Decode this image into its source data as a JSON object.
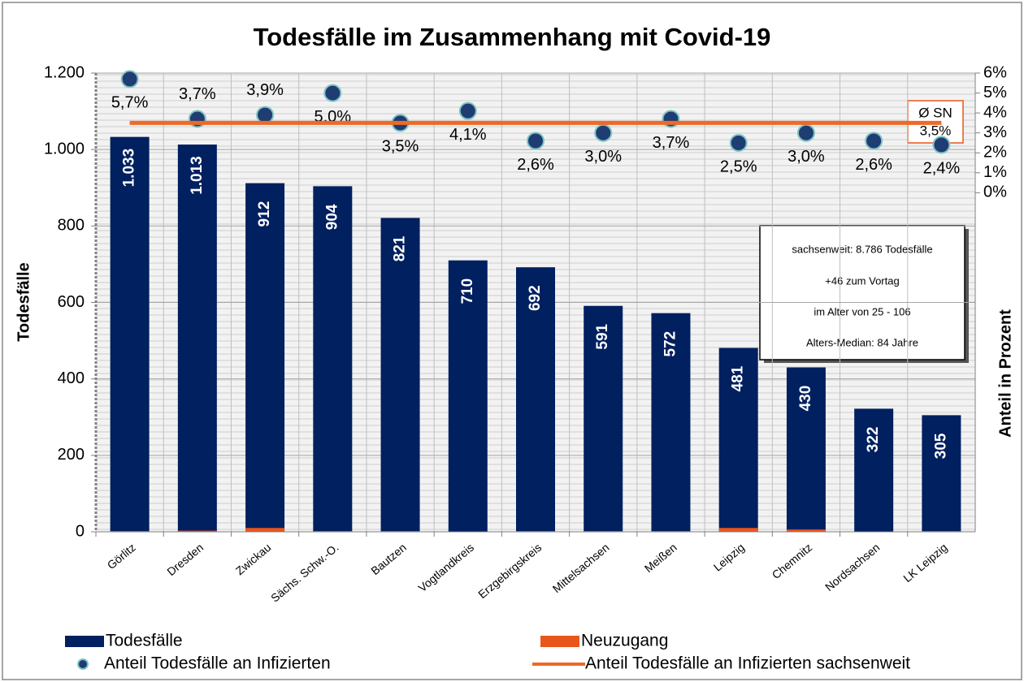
{
  "chart_data": {
    "type": "bar",
    "title": "Todesfälle im Zusammenhang mit Covid-19",
    "ylabel": "Todesfälle",
    "y2label": "Anteil in Prozent",
    "categories": [
      "Görlitz",
      "Dresden",
      "Zwickau",
      "Sächs. Schw.-O.",
      "Bautzen",
      "Vogtlandkreis",
      "Erzgebirgskreis",
      "Mittelsachsen",
      "Meißen",
      "Leipzig",
      "Chemnitz",
      "Nordsachsen",
      "LK Leipzig"
    ],
    "ylim": [
      0,
      1200
    ],
    "yticks": [
      0,
      200,
      400,
      600,
      800,
      {
        "value": 1000,
        "label": "1.000"
      },
      {
        "value": 1200,
        "label": "1.200"
      }
    ],
    "y2lim": [
      -17,
      6
    ],
    "y2ticks": [
      {
        "value": 0,
        "label": "0%"
      },
      {
        "value": 1,
        "label": "1%"
      },
      {
        "value": 2,
        "label": "2%"
      },
      {
        "value": 3,
        "label": "3%"
      },
      {
        "value": 4,
        "label": "4%"
      },
      {
        "value": 5,
        "label": "5%"
      },
      {
        "value": 6,
        "label": "6%"
      }
    ],
    "grid": true,
    "series": [
      {
        "name": "Todesfälle",
        "type": "bar",
        "color": "#002060",
        "values": [
          1033,
          1013,
          912,
          904,
          821,
          710,
          692,
          591,
          572,
          481,
          430,
          322,
          305
        ],
        "value_labels": [
          "1.033",
          "1.013",
          "912",
          "904",
          "821",
          "710",
          "692",
          "591",
          "572",
          "481",
          "430",
          "322",
          "305"
        ]
      },
      {
        "name": "Neuzugang",
        "type": "bar",
        "color": "#e8561c",
        "values": [
          2,
          3,
          10,
          2,
          2,
          1,
          2,
          2,
          2,
          10,
          6,
          1,
          2
        ]
      },
      {
        "name": "Anteil Todesfälle an Infizierten",
        "type": "scatter",
        "axis": "y2",
        "color": "#1f3c73",
        "values": [
          5.7,
          3.7,
          3.9,
          5.0,
          3.5,
          4.1,
          2.6,
          3.0,
          3.7,
          2.5,
          3.0,
          2.6,
          2.4
        ],
        "value_labels": [
          "5,7%",
          "3,7%",
          "3,9%",
          "5,0%",
          "3,5%",
          "4,1%",
          "2,6%",
          "3,0%",
          "3,7%",
          "2,5%",
          "3,0%",
          "2,6%",
          "2,4%"
        ]
      },
      {
        "name": "Anteil Todesfälle an Infizierten sachsenweit",
        "type": "line",
        "axis": "y2",
        "color": "#ed6a27",
        "values": [
          3.5,
          3.5,
          3.5,
          3.5,
          3.5,
          3.5,
          3.5,
          3.5,
          3.5,
          3.5,
          3.5,
          3.5,
          3.5
        ]
      }
    ],
    "annotations": [
      "Ø SN",
      "3,5%"
    ],
    "info_box": [
      "sachsenweit: 8.786 Todesfälle",
      "+46 zum Vortag",
      "im Alter von 25  -  106",
      "Alters-Median: 84 Jahre"
    ]
  }
}
